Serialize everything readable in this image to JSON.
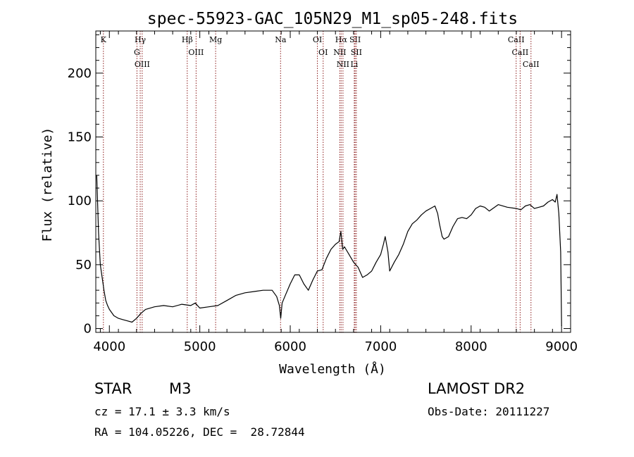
{
  "chart_data": {
    "type": "line",
    "title": "spec-55923-GAC_105N29_M1_sp05-248.fits",
    "xlabel": "Wavelength (Å)",
    "ylabel": "Flux (relative)",
    "xlim": [
      3850,
      9100
    ],
    "ylim": [
      -3,
      233
    ],
    "x_ticks": [
      4000,
      5000,
      6000,
      7000,
      8000,
      9000
    ],
    "y_ticks": [
      0,
      50,
      100,
      150,
      200
    ],
    "grid": false,
    "series": [
      {
        "x": [
          3860,
          3880,
          3900,
          3920,
          3940,
          3960,
          3980,
          4000,
          4050,
          4100,
          4150,
          4200,
          4250,
          4300,
          4350,
          4400,
          4500,
          4600,
          4700,
          4800,
          4900,
          4950,
          5000,
          5100,
          5200,
          5300,
          5400,
          5500,
          5600,
          5700,
          5800,
          5850,
          5880,
          5895,
          5910,
          5940,
          6000,
          6050,
          6100,
          6150,
          6200,
          6250,
          6300,
          6350,
          6400,
          6450,
          6500,
          6540,
          6560,
          6580,
          6600,
          6650,
          6700,
          6750,
          6800,
          6850,
          6900,
          6950,
          7000,
          7030,
          7050,
          7080,
          7100,
          7150,
          7200,
          7250,
          7300,
          7350,
          7400,
          7450,
          7500,
          7550,
          7600,
          7630,
          7650,
          7680,
          7700,
          7750,
          7800,
          7850,
          7900,
          7950,
          8000,
          8050,
          8100,
          8150,
          8200,
          8300,
          8400,
          8500,
          8550,
          8600,
          8650,
          8700,
          8750,
          8800,
          8850,
          8900,
          8930,
          8950,
          8970,
          8990,
          9000
        ],
        "y": [
          120,
          75,
          50,
          40,
          30,
          22,
          18,
          15,
          10,
          8,
          7,
          6,
          5,
          8,
          12,
          15,
          17,
          18,
          17,
          19,
          18,
          20,
          16,
          17,
          18,
          22,
          26,
          28,
          29,
          30,
          30,
          25,
          18,
          8,
          20,
          25,
          35,
          42,
          42,
          35,
          30,
          38,
          45,
          46,
          55,
          62,
          66,
          68,
          76,
          62,
          64,
          58,
          52,
          48,
          40,
          42,
          45,
          52,
          58,
          66,
          72,
          60,
          45,
          52,
          58,
          66,
          76,
          82,
          85,
          89,
          92,
          94,
          96,
          90,
          82,
          72,
          70,
          72,
          80,
          86,
          87,
          86,
          89,
          94,
          96,
          95,
          92,
          97,
          95,
          94,
          93,
          96,
          97,
          94,
          95,
          96,
          99,
          101,
          99,
          105,
          90,
          60,
          2
        ]
      }
    ],
    "line_markers": [
      {
        "label": "K",
        "x": 3934
      },
      {
        "label": "Hγ",
        "x": 4341
      },
      {
        "label": "G",
        "x": 4305
      },
      {
        "label": "OIII",
        "x": 4363
      },
      {
        "label": "Hβ",
        "x": 4861
      },
      {
        "label": "OIII",
        "x": 4959
      },
      {
        "label": "Mg",
        "x": 5175
      },
      {
        "label": "Na",
        "x": 5893
      },
      {
        "label": "OI",
        "x": 6300
      },
      {
        "label": "OI",
        "x": 6364
      },
      {
        "label": "Hα",
        "x": 6563
      },
      {
        "label": "NII",
        "x": 6548
      },
      {
        "label": "NII",
        "x": 6583
      },
      {
        "label": "SII",
        "x": 6717
      },
      {
        "label": "SII",
        "x": 6731
      },
      {
        "label": "Li",
        "x": 6708
      },
      {
        "label": "CaII",
        "x": 8498
      },
      {
        "label": "CaII",
        "x": 8542
      },
      {
        "label": "CaII",
        "x": 8662
      }
    ],
    "marker_color": "#8b1a1a"
  },
  "info": {
    "object_class": "STAR",
    "subclass": "M3",
    "survey": "LAMOST DR2",
    "cz": "cz = 17.1 ± 3.3 km/s",
    "obs_date": "Obs-Date: 20111227",
    "radec": "RA = 104.05226, DEC =  28.72844"
  }
}
